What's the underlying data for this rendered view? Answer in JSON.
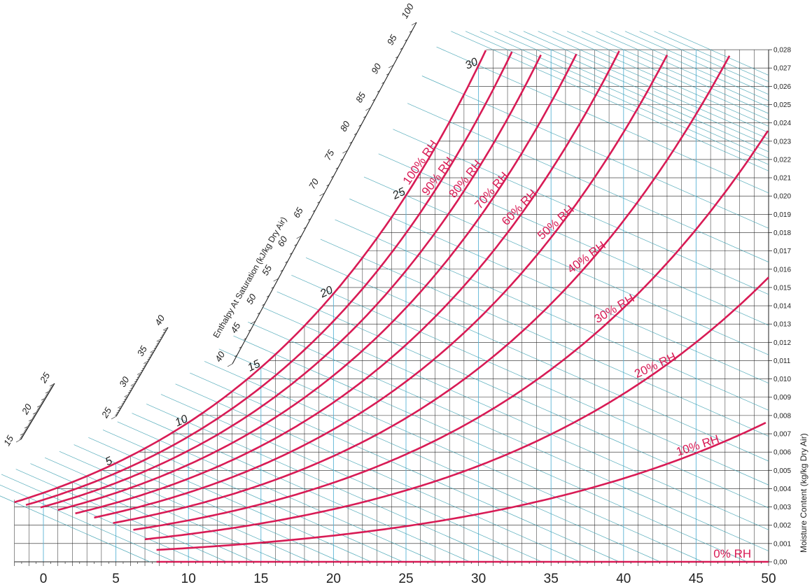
{
  "chart_data": {
    "type": "line",
    "title": "",
    "xlabel": "",
    "ylabel": "Moisture Content (kg/kg Dry Air)",
    "enthalpy_scale_label": "Enthalpy At Saturation (kJ/kg Dry Air)",
    "xlim": [
      -2,
      50
    ],
    "ylim": [
      0,
      0.028
    ],
    "x_ticks": [
      "0",
      "5",
      "10",
      "15",
      "20",
      "25",
      "30",
      "35",
      "40",
      "45",
      "50"
    ],
    "y_ticks": [
      "0,00",
      "0,001",
      "0,002",
      "0,003",
      "0,004",
      "0,005",
      "0,006",
      "0,007",
      "0,008",
      "0,009",
      "0,010",
      "0,011",
      "0,012",
      "0,013",
      "0,014",
      "0,015",
      "0,016",
      "0,017",
      "0,018",
      "0,019",
      "0,020",
      "0,021",
      "0,022",
      "0,023",
      "0,024",
      "0,025",
      "0,026",
      "0,027",
      "0,028"
    ],
    "grid": true,
    "series": [
      {
        "name": "100% RH",
        "rh": 100,
        "x_start": -2,
        "points": [
          [
            -2,
            0.0034
          ],
          [
            0,
            0.0038
          ],
          [
            5,
            0.0054
          ],
          [
            10,
            0.0077
          ],
          [
            15,
            0.0107
          ],
          [
            20,
            0.0148
          ],
          [
            25,
            0.0202
          ],
          [
            30,
            0.0275
          ]
        ]
      },
      {
        "name": "90% RH",
        "rh": 90,
        "x_start": -1.2,
        "points": [
          [
            -1,
            0.0034
          ],
          [
            0,
            0.0034
          ],
          [
            5,
            0.0049
          ],
          [
            10,
            0.0069
          ],
          [
            15,
            0.0096
          ],
          [
            20,
            0.0133
          ],
          [
            25,
            0.0181
          ],
          [
            30,
            0.0246
          ]
        ]
      },
      {
        "name": "80% RH",
        "rh": 80,
        "x_start": -0.2,
        "points": [
          [
            0,
            0.003
          ],
          [
            5,
            0.0043
          ],
          [
            10,
            0.0061
          ],
          [
            15,
            0.0085
          ],
          [
            20,
            0.0118
          ],
          [
            25,
            0.0161
          ],
          [
            30,
            0.0218
          ]
        ]
      },
      {
        "name": "70% RH",
        "rh": 70,
        "x_start": 1.0,
        "points": [
          [
            0,
            0.0027
          ],
          [
            5,
            0.0038
          ],
          [
            10,
            0.0053
          ],
          [
            15,
            0.0075
          ],
          [
            20,
            0.0103
          ],
          [
            25,
            0.014
          ],
          [
            30,
            0.019
          ]
        ]
      },
      {
        "name": "60% RH",
        "rh": 60,
        "x_start": 2.2,
        "points": [
          [
            0,
            0.0023
          ],
          [
            5,
            0.0032
          ],
          [
            10,
            0.0046
          ],
          [
            15,
            0.0064
          ],
          [
            20,
            0.0088
          ],
          [
            25,
            0.012
          ],
          [
            30,
            0.0162
          ]
        ]
      },
      {
        "name": "50% RH",
        "rh": 50,
        "x_start": 3.5,
        "points": [
          [
            0,
            0.0019
          ],
          [
            5,
            0.0027
          ],
          [
            10,
            0.0038
          ],
          [
            15,
            0.0053
          ],
          [
            20,
            0.0073
          ],
          [
            25,
            0.0099
          ],
          [
            30,
            0.0134
          ]
        ]
      },
      {
        "name": "40% RH",
        "rh": 40,
        "x_start": 4.8,
        "points": [
          [
            0,
            0.0015
          ],
          [
            5,
            0.0021
          ],
          [
            10,
            0.003
          ],
          [
            15,
            0.0042
          ],
          [
            20,
            0.0058
          ],
          [
            25,
            0.0079
          ],
          [
            30,
            0.0107
          ]
        ]
      },
      {
        "name": "30% RH",
        "rh": 30,
        "x_start": 6.2,
        "points": [
          [
            0,
            0.0011
          ],
          [
            5,
            0.0016
          ],
          [
            10,
            0.0023
          ],
          [
            15,
            0.0032
          ],
          [
            20,
            0.0044
          ],
          [
            25,
            0.0059
          ],
          [
            30,
            0.008
          ]
        ]
      },
      {
        "name": "20% RH",
        "rh": 20,
        "x_start": 7.0,
        "points": [
          [
            0,
            0.0008
          ],
          [
            5,
            0.0011
          ],
          [
            10,
            0.0015
          ],
          [
            15,
            0.0021
          ],
          [
            20,
            0.0029
          ],
          [
            25,
            0.0039
          ],
          [
            30,
            0.0053
          ]
        ]
      },
      {
        "name": "10% RH",
        "rh": 10,
        "x_start": 7.8,
        "points": [
          [
            0,
            0.0004
          ],
          [
            5,
            0.0005
          ],
          [
            10,
            0.0008
          ],
          [
            15,
            0.0011
          ],
          [
            20,
            0.0015
          ],
          [
            25,
            0.002
          ],
          [
            30,
            0.0027
          ]
        ]
      },
      {
        "name": "0% RH",
        "rh": 0,
        "x_start": 7.8,
        "points": [
          [
            8,
            0
          ],
          [
            50,
            0
          ]
        ]
      }
    ],
    "wet_bulb_labels": [
      "5",
      "10",
      "15",
      "20",
      "25",
      "30"
    ],
    "enthalpy_labels_left": [
      "15",
      "20",
      "25"
    ],
    "enthalpy_labels_mid": [
      "25",
      "30",
      "35",
      "40"
    ],
    "enthalpy_labels_main": [
      "40",
      "45",
      "50",
      "55",
      "60",
      "65",
      "70",
      "75",
      "80",
      "85",
      "90",
      "95",
      "100"
    ],
    "colors": {
      "curve": "#d81b55",
      "grid": "#222222",
      "vgrid_blue": "#5bb4d6",
      "enthalpy": "#3a9fb0"
    }
  }
}
